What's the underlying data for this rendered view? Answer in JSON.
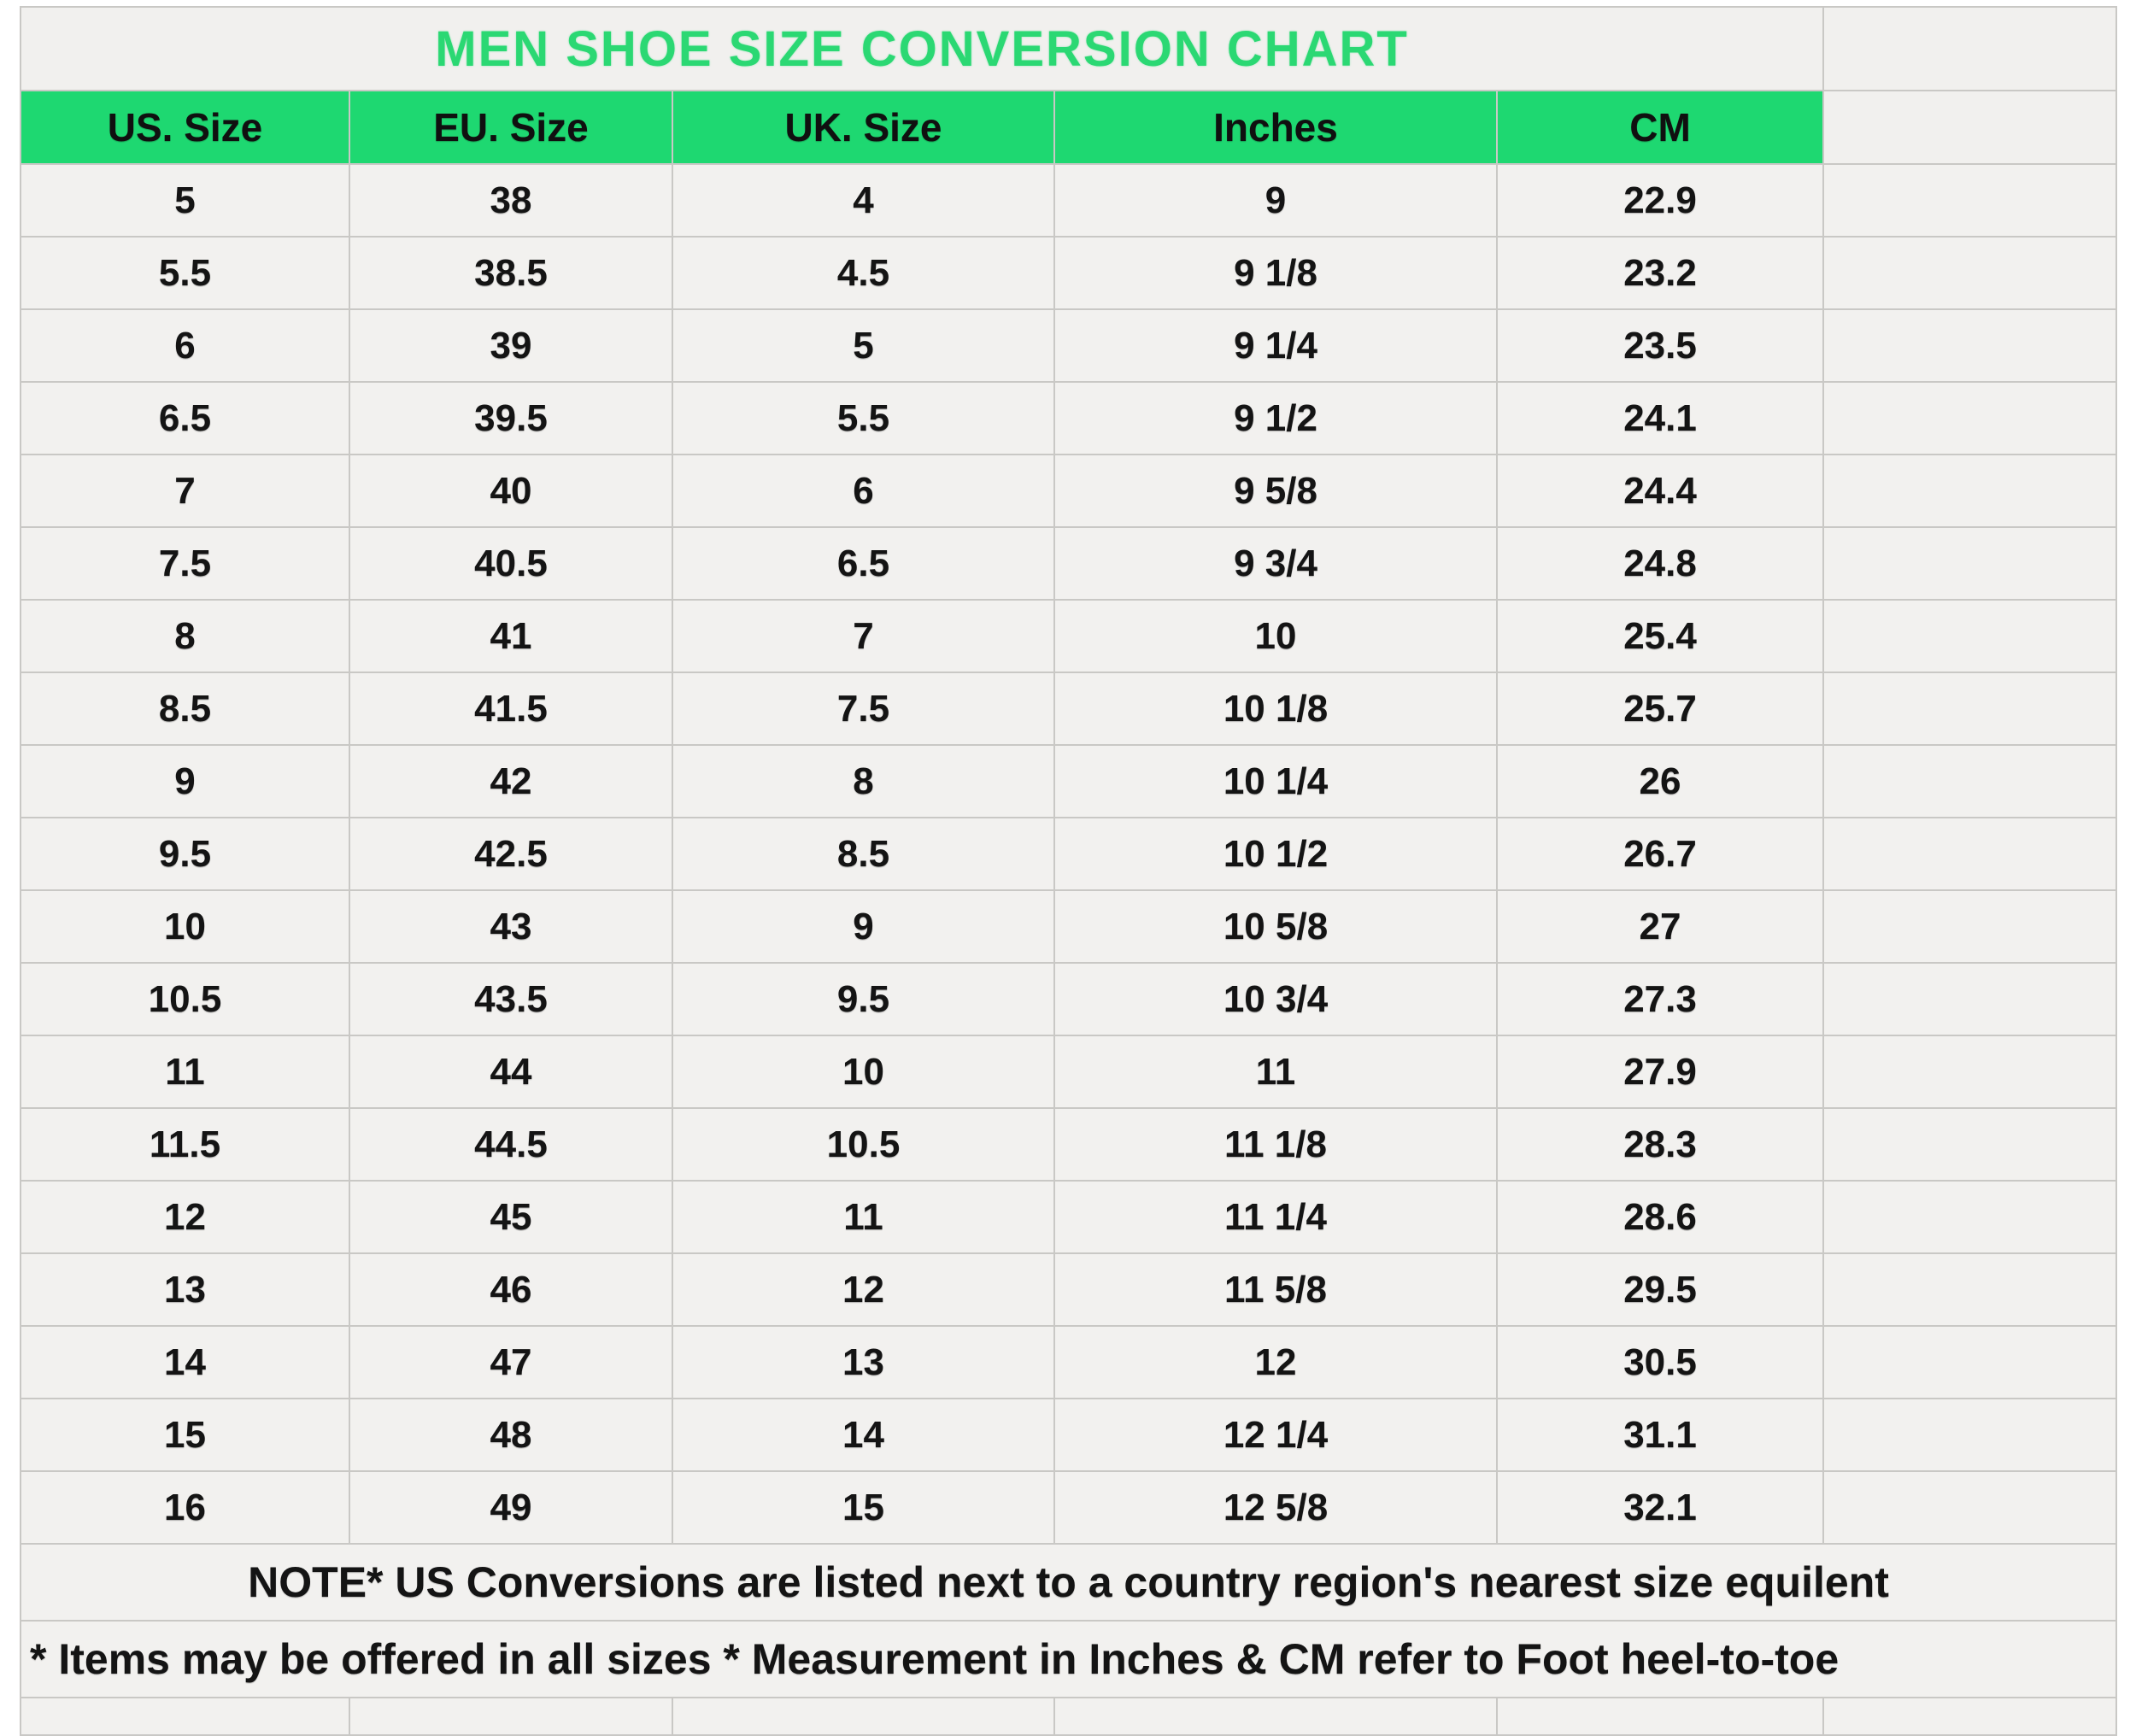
{
  "chart_data": {
    "type": "table",
    "title": "MEN SHOE SIZE CONVERSION CHART",
    "columns": [
      "US. Size",
      "EU. Size",
      "UK. Size",
      "Inches",
      "CM"
    ],
    "rows": [
      [
        "5",
        "38",
        "4",
        "9",
        "22.9"
      ],
      [
        "5.5",
        "38.5",
        "4.5",
        "9 1/8",
        "23.2"
      ],
      [
        "6",
        "39",
        "5",
        "9 1/4",
        "23.5"
      ],
      [
        "6.5",
        "39.5",
        "5.5",
        "9 1/2",
        "24.1"
      ],
      [
        "7",
        "40",
        "6",
        "9 5/8",
        "24.4"
      ],
      [
        "7.5",
        "40.5",
        "6.5",
        "9 3/4",
        "24.8"
      ],
      [
        "8",
        "41",
        "7",
        "10",
        "25.4"
      ],
      [
        "8.5",
        "41.5",
        "7.5",
        "10 1/8",
        "25.7"
      ],
      [
        "9",
        "42",
        "8",
        "10 1/4",
        "26"
      ],
      [
        "9.5",
        "42.5",
        "8.5",
        "10 1/2",
        "26.7"
      ],
      [
        "10",
        "43",
        "9",
        "10 5/8",
        "27"
      ],
      [
        "10.5",
        "43.5",
        "9.5",
        "10 3/4",
        "27.3"
      ],
      [
        "11",
        "44",
        "10",
        "11",
        "27.9"
      ],
      [
        "11.5",
        "44.5",
        "10.5",
        "11 1/8",
        "28.3"
      ],
      [
        "12",
        "45",
        "11",
        "11 1/4",
        "28.6"
      ],
      [
        "13",
        "46",
        "12",
        "11 5/8",
        "29.5"
      ],
      [
        "14",
        "47",
        "13",
        "12",
        "30.5"
      ],
      [
        "15",
        "48",
        "14",
        "12 1/4",
        "31.1"
      ],
      [
        "16",
        "49",
        "15",
        "12 5/8",
        "32.1"
      ]
    ],
    "notes": [
      "NOTE* US Conversions are listed next to a country region's nearest size equilent",
      "* Items may be offered in all sizes * Measurement in Inches & CM refer to Foot heel-to-toe"
    ],
    "colors": {
      "header_bg": "#1ed871",
      "title_green": "#2bd873",
      "cell_bg": "#f2f1ef",
      "grid_line": "#c9c8c5",
      "text": "#141414"
    },
    "layout_hints": {
      "grid": true,
      "extra_empty_column": true,
      "bottom_row_clipped": true
    }
  }
}
